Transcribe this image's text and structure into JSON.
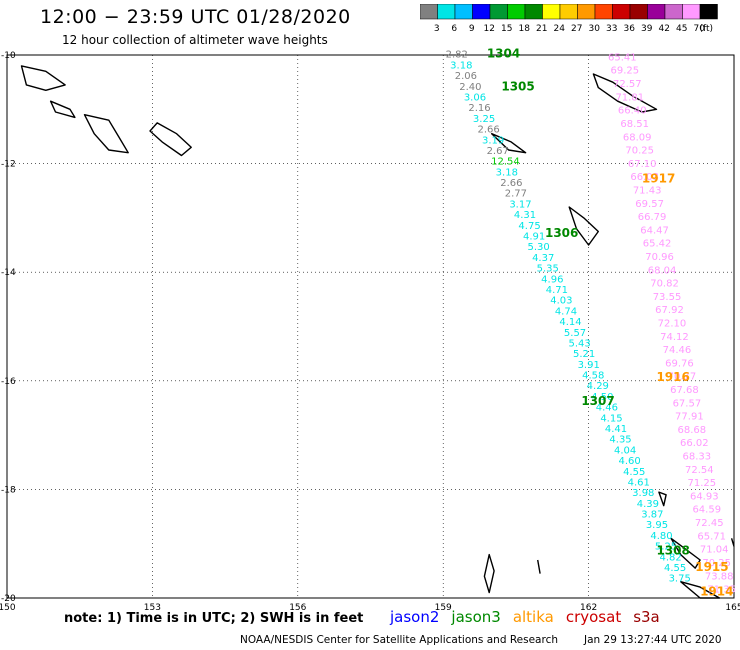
{
  "header": {
    "title": "12:00 − 23:59 UTC 01/28/2020",
    "subtitle": "12 hour collection of altimeter wave heights"
  },
  "color_scale": {
    "unit": "(ft)",
    "bins": [
      {
        "label": "3",
        "color": "#808080"
      },
      {
        "label": "6",
        "color": "#00e5e5"
      },
      {
        "label": "9",
        "color": "#00bfff"
      },
      {
        "label": "12",
        "color": "#0000ff"
      },
      {
        "label": "15",
        "color": "#009933"
      },
      {
        "label": "18",
        "color": "#00cc00"
      },
      {
        "label": "21",
        "color": "#008800"
      },
      {
        "label": "24",
        "color": "#ffff00"
      },
      {
        "label": "27",
        "color": "#ffcc00"
      },
      {
        "label": "30",
        "color": "#ff9900"
      },
      {
        "label": "33",
        "color": "#ff4400"
      },
      {
        "label": "36",
        "color": "#cc0000"
      },
      {
        "label": "39",
        "color": "#990000"
      },
      {
        "label": "42",
        "color": "#990099"
      },
      {
        "label": "45",
        "color": "#cc66cc"
      },
      {
        "label": "70",
        "color": "#ff99ff"
      },
      {
        "label": "",
        "color": "#000000"
      }
    ]
  },
  "map": {
    "x_range": [
      150,
      165
    ],
    "y_range": [
      -20,
      -10
    ],
    "x_ticks": [
      "150",
      "153",
      "156",
      "159",
      "162",
      "165"
    ],
    "y_ticks": [
      "-10",
      "-12",
      "-14",
      "-16",
      "-18",
      "-20"
    ],
    "time_labels": [
      {
        "text": "1304",
        "lon": 159.9,
        "lat": -10.05,
        "color": "#008800"
      },
      {
        "text": "1305",
        "lon": 160.2,
        "lat": -10.65,
        "color": "#008800"
      },
      {
        "text": "1306",
        "lon": 161.1,
        "lat": -13.35,
        "color": "#008800"
      },
      {
        "text": "1307",
        "lon": 161.85,
        "lat": -16.45,
        "color": "#008800"
      },
      {
        "text": "1308",
        "lon": 163.4,
        "lat": -19.2,
        "color": "#008800"
      },
      {
        "text": "1917",
        "lon": 163.1,
        "lat": -12.35,
        "color": "#ff9900"
      },
      {
        "text": "1916",
        "lon": 163.4,
        "lat": -16.0,
        "color": "#ff9900"
      },
      {
        "text": "1915",
        "lon": 164.2,
        "lat": -19.5,
        "color": "#ff9900"
      },
      {
        "text": "1914",
        "lon": 164.3,
        "lat": -19.95,
        "color": "#ff9900"
      }
    ],
    "tracks": [
      {
        "name": "jason3",
        "start": [
          159.05,
          -10.05
        ],
        "end": [
          163.65,
          -19.7
        ],
        "values": [
          "2.82",
          "3.18",
          "2.06",
          "2.40",
          "3.06",
          "2.16",
          "3.25",
          "2.66",
          "3.19",
          "2.67",
          "12.54",
          "3.18",
          "2.66",
          "2.77",
          "3.17",
          "4.31",
          "4.75",
          "4.91",
          "5.30",
          "4.37",
          "5.35",
          "4.96",
          "4.71",
          "4.03",
          "4.74",
          "4.14",
          "5.57",
          "5.43",
          "5.21",
          "3.91",
          "4.58",
          "4.29",
          "4.50",
          "4.46",
          "4.15",
          "4.41",
          "4.35",
          "4.04",
          "4.60",
          "4.55",
          "4.61",
          "3.98",
          "4.39",
          "3.87",
          "3.95",
          "4.80",
          "5.25",
          "4.82",
          "4.55",
          "3.75"
        ],
        "colors": [
          "#808080",
          "#00e5e5",
          "#808080",
          "#808080",
          "#00e5e5",
          "#808080",
          "#00e5e5",
          "#808080",
          "#00e5e5",
          "#808080",
          "#00cc00",
          "#00e5e5",
          "#808080",
          "#808080",
          "#00e5e5",
          "#00e5e5",
          "#00e5e5",
          "#00e5e5",
          "#00e5e5",
          "#00e5e5",
          "#00e5e5",
          "#00e5e5",
          "#00e5e5",
          "#00e5e5",
          "#00e5e5",
          "#00e5e5",
          "#00e5e5",
          "#00e5e5",
          "#00e5e5",
          "#00e5e5",
          "#00e5e5",
          "#00e5e5",
          "#00e5e5",
          "#00e5e5",
          "#00e5e5",
          "#00e5e5",
          "#00e5e5",
          "#00e5e5",
          "#00e5e5",
          "#00e5e5",
          "#00e5e5",
          "#00e5e5",
          "#00e5e5",
          "#00e5e5",
          "#00e5e5",
          "#00e5e5",
          "#00e5e5",
          "#00e5e5",
          "#00e5e5",
          "#00e5e5"
        ]
      },
      {
        "name": "altika",
        "start": [
          162.4,
          -10.1
        ],
        "end": [
          164.45,
          -19.9
        ],
        "values": [
          "65.41",
          "69.25",
          "72.57",
          "71.81",
          "66.40",
          "68.51",
          "68.09",
          "70.25",
          "67.10",
          "66.03",
          "71.43",
          "69.57",
          "66.79",
          "64.47",
          "65.42",
          "70.96",
          "68.04",
          "70.82",
          "73.55",
          "67.92",
          "72.10",
          "74.12",
          "74.46",
          "69.76",
          "70.77",
          "67.68",
          "67.57",
          "77.91",
          "68.68",
          "66.02",
          "68.33",
          "72.54",
          "71.25",
          "64.93",
          "64.59",
          "72.45",
          "65.71",
          "71.04",
          "70.25",
          "73.88",
          "71.35"
        ],
        "colors": [
          "#ff99ff"
        ]
      }
    ],
    "islands": [
      {
        "name": "png-a",
        "points": [
          [
            150.3,
            -10.2
          ],
          [
            150.8,
            -10.3
          ],
          [
            151.2,
            -10.55
          ],
          [
            150.8,
            -10.65
          ],
          [
            150.4,
            -10.55
          ]
        ]
      },
      {
        "name": "png-b",
        "points": [
          [
            151.6,
            -11.1
          ],
          [
            152.1,
            -11.2
          ],
          [
            152.3,
            -11.5
          ],
          [
            152.5,
            -11.8
          ],
          [
            152.1,
            -11.75
          ],
          [
            151.8,
            -11.45
          ]
        ]
      },
      {
        "name": "png-c",
        "points": [
          [
            153.1,
            -11.25
          ],
          [
            153.5,
            -11.45
          ],
          [
            153.8,
            -11.7
          ],
          [
            153.6,
            -11.85
          ],
          [
            153.2,
            -11.6
          ],
          [
            152.95,
            -11.4
          ]
        ]
      },
      {
        "name": "png-d",
        "points": [
          [
            150.9,
            -10.85
          ],
          [
            151.3,
            -11.0
          ],
          [
            151.4,
            -11.15
          ],
          [
            151.0,
            -11.05
          ]
        ]
      },
      {
        "name": "rennell",
        "points": [
          [
            160.0,
            -11.45
          ],
          [
            160.4,
            -11.6
          ],
          [
            160.7,
            -11.8
          ],
          [
            160.35,
            -11.75
          ]
        ]
      },
      {
        "name": "san-cristobal",
        "points": [
          [
            162.1,
            -10.35
          ],
          [
            162.5,
            -10.5
          ],
          [
            162.9,
            -10.75
          ],
          [
            163.4,
            -11.0
          ],
          [
            163.1,
            -11.05
          ],
          [
            162.6,
            -10.85
          ],
          [
            162.2,
            -10.6
          ]
        ]
      },
      {
        "name": "espiritu-santo",
        "points": [
          [
            161.6,
            -12.8
          ],
          [
            161.9,
            -13.0
          ],
          [
            162.2,
            -13.25
          ],
          [
            162.0,
            -13.5
          ],
          [
            161.75,
            -13.2
          ]
        ]
      },
      {
        "name": "new-caledonia-n",
        "points": [
          [
            163.7,
            -18.9
          ],
          [
            164.0,
            -19.1
          ],
          [
            164.3,
            -19.3
          ],
          [
            164.2,
            -19.45
          ],
          [
            163.9,
            -19.2
          ]
        ]
      },
      {
        "name": "new-caledonia-s",
        "points": [
          [
            163.9,
            -19.7
          ],
          [
            164.3,
            -19.8
          ],
          [
            164.7,
            -20.0
          ],
          [
            164.3,
            -20.0
          ]
        ]
      },
      {
        "name": "reef-a",
        "points": [
          [
            163.45,
            -18.05
          ],
          [
            163.6,
            -18.1
          ],
          [
            163.55,
            -18.3
          ]
        ]
      },
      {
        "name": "islet-a",
        "points": [
          [
            159.95,
            -19.2
          ],
          [
            160.05,
            -19.5
          ],
          [
            159.95,
            -19.9
          ],
          [
            159.85,
            -19.6
          ]
        ]
      },
      {
        "name": "islet-b",
        "points": [
          [
            160.95,
            -19.3
          ],
          [
            161.0,
            -19.55
          ]
        ]
      },
      {
        "name": "islet-c",
        "points": [
          [
            164.95,
            -18.9
          ],
          [
            165.0,
            -19.05
          ]
        ]
      }
    ]
  },
  "footer": {
    "note": "note: 1) Time is in UTC; 2) SWH is in feet",
    "legend": [
      {
        "label": "jason2",
        "color": "#0000ff"
      },
      {
        "label": "jason3",
        "color": "#008800"
      },
      {
        "label": "altika",
        "color": "#ff9900"
      },
      {
        "label": "cryosat",
        "color": "#cc0000"
      },
      {
        "label": "s3a",
        "color": "#990000"
      }
    ],
    "credit": "NOAA/NESDIS Center for Satellite Applications and Research",
    "timestamp": "Jan 29 13:27:44 UTC 2020"
  }
}
